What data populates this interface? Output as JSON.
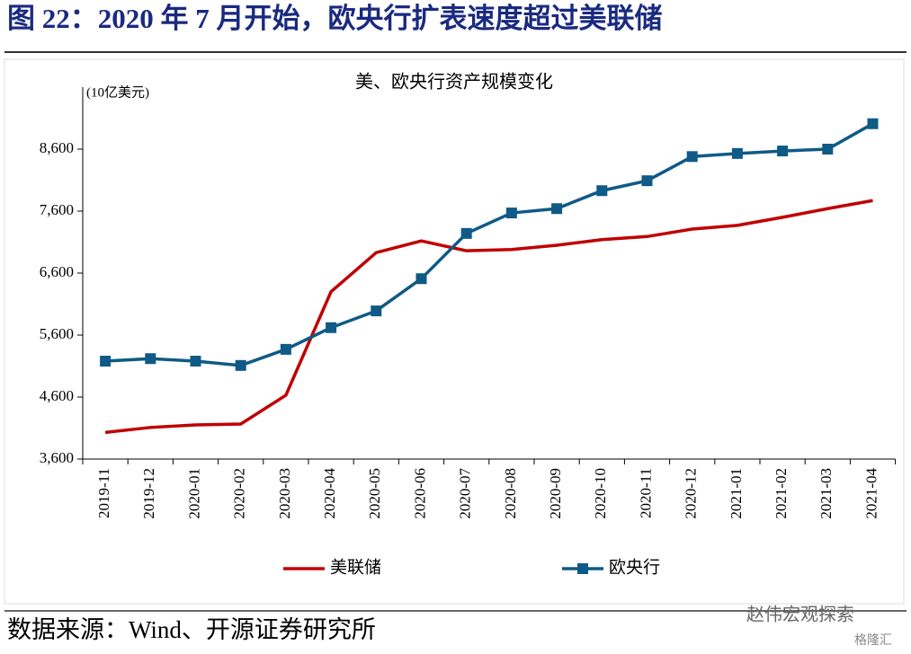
{
  "header": {
    "title": "图 22：2020 年 7 月开始，欧央行扩表速度超过美联储"
  },
  "chart_data": {
    "type": "line",
    "title": "美、欧央行资产规模变化",
    "y_label": "(10亿美元)",
    "categories": [
      "2019-11",
      "2019-12",
      "2020-01",
      "2020-02",
      "2020-03",
      "2020-04",
      "2020-05",
      "2020-06",
      "2020-07",
      "2020-08",
      "2020-09",
      "2020-10",
      "2020-11",
      "2020-12",
      "2021-01",
      "2021-02",
      "2021-03",
      "2021-04"
    ],
    "series": [
      {
        "name": "美联储",
        "color": "#c00000",
        "marker": "none",
        "values": [
          4030,
          4110,
          4150,
          4165,
          4630,
          6300,
          6930,
          7120,
          6960,
          6980,
          7050,
          7140,
          7190,
          7310,
          7370,
          7500,
          7640,
          7770
        ]
      },
      {
        "name": "欧央行",
        "color": "#0f5a86",
        "marker": "square",
        "values": [
          5180,
          5220,
          5180,
          5110,
          5370,
          5720,
          5990,
          6510,
          7240,
          7570,
          7640,
          7930,
          8090,
          8480,
          8530,
          8570,
          8600,
          9010
        ]
      }
    ],
    "ylim": [
      3600,
      9600
    ],
    "yticks": [
      {
        "value": 3600,
        "label": "3,600"
      },
      {
        "value": 4600,
        "label": "4,600"
      },
      {
        "value": 5600,
        "label": "5,600"
      },
      {
        "value": 6600,
        "label": "6,600"
      },
      {
        "value": 7600,
        "label": "7,600"
      },
      {
        "value": 8600,
        "label": "8,600"
      }
    ],
    "grid": false,
    "legend": "bottom"
  },
  "footer": {
    "source": "数据来源：Wind、开源证券研究所",
    "watermark": "赵伟宏观探索",
    "logo": "格隆汇"
  }
}
